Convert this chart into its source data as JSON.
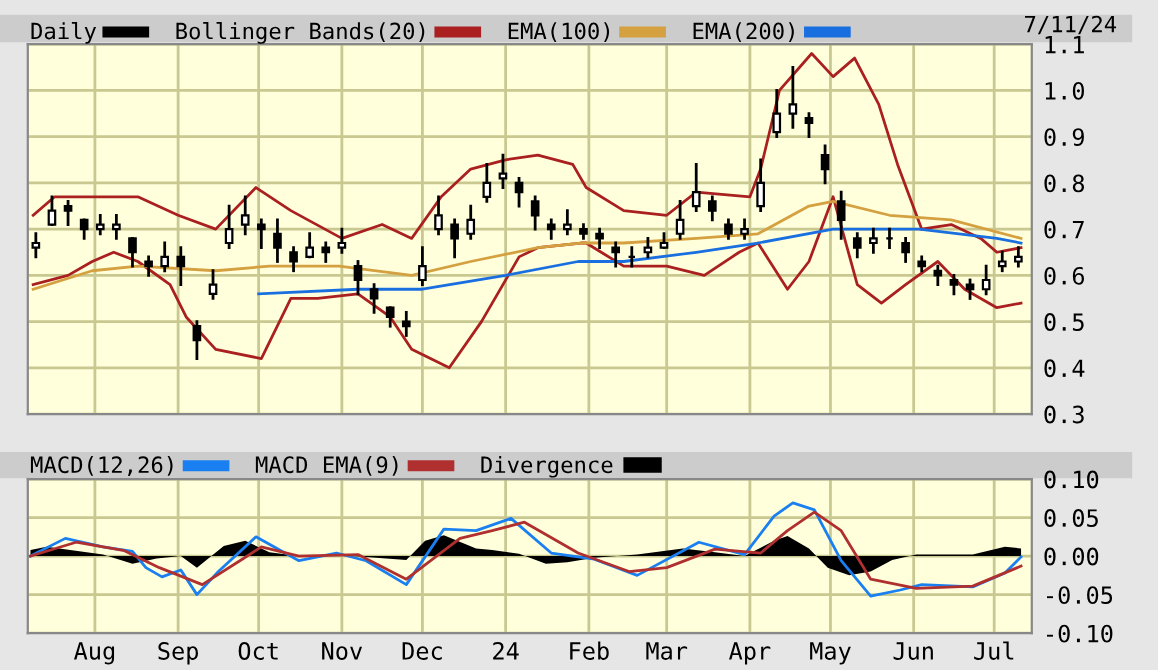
{
  "chart_data": [
    {
      "type": "candlestick",
      "legend": "top",
      "grid": true,
      "tick_labels": "y",
      "annotations": [
        "7/11/24"
      ],
      "xlim": [
        "2023-07-07",
        "2024-07-15"
      ],
      "xticks": [
        {
          "value": "2023-08-01",
          "label": null
        },
        {
          "value": "2023-09-01",
          "label": null
        },
        {
          "value": "2023-10-01",
          "label": null
        },
        {
          "value": "2023-11-01",
          "label": null
        },
        {
          "value": "2023-12-01",
          "label": null
        },
        {
          "value": "2024-01-01",
          "label": null
        },
        {
          "value": "2024-02-01",
          "label": null
        },
        {
          "value": "2024-03-01",
          "label": null
        },
        {
          "value": "2024-04-01",
          "label": null
        },
        {
          "value": "2024-05-01",
          "label": null
        },
        {
          "value": "2024-06-01",
          "label": null
        },
        {
          "value": "2024-07-01",
          "label": null
        }
      ],
      "ylim": [
        0.3,
        1.1
      ],
      "yticks": [
        0.3,
        0.4,
        0.5,
        0.6,
        0.7,
        0.8,
        0.9,
        {
          "value": 1.0,
          "label": "1.0"
        },
        1.1
      ],
      "series": [
        {
          "name": "Daily",
          "color": "#000000",
          "x": [
            "2023-07-10",
            "2023-07-16",
            "2023-07-22",
            "2023-07-28",
            "2023-08-03",
            "2023-08-09",
            "2023-08-15",
            "2023-08-21",
            "2023-08-27",
            "2023-09-02",
            "2023-09-08",
            "2023-09-14",
            "2023-09-20",
            "2023-09-26",
            "2023-10-02",
            "2023-10-08",
            "2023-10-14",
            "2023-10-20",
            "2023-10-26",
            "2023-11-01",
            "2023-11-07",
            "2023-11-13",
            "2023-11-19",
            "2023-11-25",
            "2023-12-01",
            "2023-12-07",
            "2023-12-13",
            "2023-12-19",
            "2023-12-25",
            "2023-12-31",
            "2024-01-06",
            "2024-01-12",
            "2024-01-18",
            "2024-01-24",
            "2024-01-30",
            "2024-02-05",
            "2024-02-11",
            "2024-02-17",
            "2024-02-23",
            "2024-02-29",
            "2024-03-06",
            "2024-03-12",
            "2024-03-18",
            "2024-03-24",
            "2024-03-30",
            "2024-04-05",
            "2024-04-11",
            "2024-04-17",
            "2024-04-23",
            "2024-04-29",
            "2024-05-05",
            "2024-05-11",
            "2024-05-17",
            "2024-05-23",
            "2024-05-29",
            "2024-06-04",
            "2024-06-10",
            "2024-06-16",
            "2024-06-22",
            "2024-06-28",
            "2024-07-04",
            "2024-07-10"
          ],
          "ohlc": [
            [
              0.66,
              0.69,
              0.64,
              0.67
            ],
            [
              0.71,
              0.77,
              0.71,
              0.74
            ],
            [
              0.75,
              0.76,
              0.71,
              0.74
            ],
            [
              0.72,
              0.72,
              0.68,
              0.7
            ],
            [
              0.7,
              0.73,
              0.69,
              0.71
            ],
            [
              0.7,
              0.73,
              0.68,
              0.71
            ],
            [
              0.68,
              0.68,
              0.62,
              0.65
            ],
            [
              0.63,
              0.64,
              0.6,
              0.62
            ],
            [
              0.62,
              0.67,
              0.61,
              0.64
            ],
            [
              0.64,
              0.66,
              0.58,
              0.62
            ],
            [
              0.49,
              0.5,
              0.42,
              0.46
            ],
            [
              0.56,
              0.61,
              0.55,
              0.58
            ],
            [
              0.67,
              0.75,
              0.66,
              0.7
            ],
            [
              0.71,
              0.77,
              0.69,
              0.73
            ],
            [
              0.71,
              0.72,
              0.66,
              0.7
            ],
            [
              0.69,
              0.72,
              0.63,
              0.66
            ],
            [
              0.65,
              0.66,
              0.61,
              0.63
            ],
            [
              0.64,
              0.69,
              0.64,
              0.66
            ],
            [
              0.66,
              0.67,
              0.63,
              0.65
            ],
            [
              0.66,
              0.7,
              0.65,
              0.67
            ],
            [
              0.62,
              0.63,
              0.56,
              0.59
            ],
            [
              0.57,
              0.58,
              0.52,
              0.55
            ],
            [
              0.53,
              0.53,
              0.49,
              0.51
            ],
            [
              0.5,
              0.52,
              0.47,
              0.49
            ],
            [
              0.59,
              0.66,
              0.58,
              0.62
            ],
            [
              0.7,
              0.77,
              0.69,
              0.73
            ],
            [
              0.71,
              0.72,
              0.64,
              0.68
            ],
            [
              0.69,
              0.75,
              0.68,
              0.72
            ],
            [
              0.77,
              0.84,
              0.76,
              0.8
            ],
            [
              0.81,
              0.86,
              0.79,
              0.82
            ],
            [
              0.8,
              0.81,
              0.75,
              0.78
            ],
            [
              0.76,
              0.77,
              0.7,
              0.73
            ],
            [
              0.71,
              0.72,
              0.68,
              0.7
            ],
            [
              0.7,
              0.74,
              0.69,
              0.71
            ],
            [
              0.7,
              0.71,
              0.68,
              0.69
            ],
            [
              0.69,
              0.7,
              0.66,
              0.68
            ],
            [
              0.66,
              0.67,
              0.62,
              0.65
            ],
            [
              0.64,
              0.66,
              0.62,
              0.64
            ],
            [
              0.65,
              0.68,
              0.64,
              0.66
            ],
            [
              0.66,
              0.69,
              0.66,
              0.67
            ],
            [
              0.69,
              0.76,
              0.68,
              0.72
            ],
            [
              0.75,
              0.84,
              0.74,
              0.78
            ],
            [
              0.76,
              0.77,
              0.72,
              0.74
            ],
            [
              0.71,
              0.72,
              0.68,
              0.69
            ],
            [
              0.69,
              0.72,
              0.68,
              0.7
            ],
            [
              0.75,
              0.85,
              0.74,
              0.8
            ],
            [
              0.91,
              1.0,
              0.9,
              0.95
            ],
            [
              0.95,
              1.05,
              0.92,
              0.97
            ],
            [
              0.94,
              0.95,
              0.9,
              0.93
            ],
            [
              0.86,
              0.88,
              0.8,
              0.83
            ],
            [
              0.76,
              0.78,
              0.68,
              0.72
            ],
            [
              0.68,
              0.69,
              0.64,
              0.66
            ],
            [
              0.67,
              0.7,
              0.65,
              0.68
            ],
            [
              0.68,
              0.7,
              0.66,
              0.68
            ],
            [
              0.67,
              0.68,
              0.63,
              0.65
            ],
            [
              0.63,
              0.64,
              0.61,
              0.62
            ],
            [
              0.61,
              0.62,
              0.58,
              0.6
            ],
            [
              0.59,
              0.6,
              0.56,
              0.58
            ],
            [
              0.58,
              0.59,
              0.55,
              0.57
            ],
            [
              0.57,
              0.62,
              0.56,
              0.59
            ],
            [
              0.62,
              0.65,
              0.61,
              0.63
            ],
            [
              0.63,
              0.66,
              0.62,
              0.64
            ]
          ]
        },
        {
          "name": "Bollinger Bands(20)",
          "type": "line",
          "color": "#aa2020",
          "x": [
            "2023-07-09",
            "2023-07-17",
            "2023-08-17",
            "2023-09-01",
            "2023-09-15",
            "2023-09-30",
            "2023-10-13",
            "2023-11-01",
            "2023-11-16",
            "2023-11-27",
            "2023-12-08",
            "2023-12-19",
            "2024-01-01",
            "2024-01-13",
            "2024-01-26",
            "2024-01-31",
            "2024-02-14",
            "2024-03-01",
            "2024-03-12",
            "2024-04-01",
            "2024-04-05",
            "2024-04-12",
            "2024-04-24",
            "2024-05-02",
            "2024-05-10",
            "2024-05-19",
            "2024-05-26",
            "2024-06-04",
            "2024-06-15",
            "2024-06-26",
            "2024-07-02",
            "2024-07-11"
          ],
          "values": [
            0.73,
            0.77,
            0.77,
            0.73,
            0.7,
            0.79,
            0.74,
            0.68,
            0.71,
            0.68,
            0.77,
            0.83,
            0.85,
            0.86,
            0.84,
            0.79,
            0.74,
            0.73,
            0.78,
            0.77,
            0.83,
            1.0,
            1.08,
            1.03,
            1.07,
            0.97,
            0.84,
            0.7,
            0.71,
            0.68,
            0.65,
            0.66
          ]
        },
        {
          "type": "line",
          "color": "#aa2020",
          "x": [
            "2023-07-09",
            "2023-07-22",
            "2023-07-31",
            "2023-08-08",
            "2023-08-17",
            "2023-08-29",
            "2023-09-04",
            "2023-09-15",
            "2023-10-02",
            "2023-10-13",
            "2023-10-23",
            "2023-11-07",
            "2023-11-19",
            "2023-11-27",
            "2023-12-11",
            "2023-12-23",
            "2024-01-06",
            "2024-01-13",
            "2024-01-29",
            "2024-01-31",
            "2024-02-14",
            "2024-03-01",
            "2024-03-15",
            "2024-03-28",
            "2024-04-04",
            "2024-04-15",
            "2024-04-23",
            "2024-05-02",
            "2024-05-11",
            "2024-05-20",
            "2024-05-29",
            "2024-06-10",
            "2024-06-20",
            "2024-07-02",
            "2024-07-11"
          ],
          "values": [
            0.58,
            0.6,
            0.63,
            0.65,
            0.63,
            0.58,
            0.51,
            0.44,
            0.42,
            0.55,
            0.55,
            0.56,
            0.51,
            0.44,
            0.4,
            0.5,
            0.64,
            0.66,
            0.67,
            0.67,
            0.62,
            0.62,
            0.6,
            0.65,
            0.67,
            0.57,
            0.63,
            0.77,
            0.58,
            0.54,
            0.58,
            0.63,
            0.57,
            0.53,
            0.54
          ]
        },
        {
          "name": "EMA(100)",
          "type": "line",
          "color": "#d4a040",
          "x": [
            "2023-07-09",
            "2023-07-31",
            "2023-08-17",
            "2023-09-15",
            "2023-10-05",
            "2023-10-31",
            "2023-11-27",
            "2023-12-19",
            "2024-01-13",
            "2024-01-29",
            "2024-02-14",
            "2024-03-12",
            "2024-04-04",
            "2024-04-23",
            "2024-05-02",
            "2024-05-23",
            "2024-06-15",
            "2024-07-11"
          ],
          "values": [
            0.57,
            0.61,
            0.62,
            0.61,
            0.62,
            0.62,
            0.6,
            0.63,
            0.66,
            0.67,
            0.67,
            0.68,
            0.69,
            0.75,
            0.76,
            0.73,
            0.72,
            0.68
          ]
        },
        {
          "name": "EMA(200)",
          "type": "line",
          "color": "#1a6fe0",
          "x": [
            "2023-10-01",
            "2023-11-07",
            "2023-12-01",
            "2024-01-01",
            "2024-01-28",
            "2024-02-14",
            "2024-03-12",
            "2024-04-04",
            "2024-05-02",
            "2024-06-03",
            "2024-07-02",
            "2024-07-11"
          ],
          "values": [
            0.56,
            0.57,
            0.57,
            0.6,
            0.63,
            0.63,
            0.65,
            0.67,
            0.7,
            0.7,
            0.68,
            0.67
          ]
        }
      ]
    },
    {
      "type": "line",
      "legend": "top",
      "grid": true,
      "xlim": [
        "2023-07-07",
        "2024-07-15"
      ],
      "xticks": [
        {
          "value": "2023-08-01",
          "label": "Aug"
        },
        {
          "value": "2023-09-01",
          "label": "Sep"
        },
        {
          "value": "2023-10-01",
          "label": "Oct"
        },
        {
          "value": "2023-11-01",
          "label": "Nov"
        },
        {
          "value": "2023-12-01",
          "label": "Dec"
        },
        {
          "value": "2024-01-01",
          "label": "24"
        },
        {
          "value": "2024-02-01",
          "label": "Feb"
        },
        {
          "value": "2024-03-01",
          "label": "Mar"
        },
        {
          "value": "2024-04-01",
          "label": "Apr"
        },
        {
          "value": "2024-05-01",
          "label": "May"
        },
        {
          "value": "2024-06-01",
          "label": "Jun"
        },
        {
          "value": "2024-07-01",
          "label": "Jul"
        }
      ],
      "ylim": [
        -0.1,
        0.1
      ],
      "yticks": [
        {
          "value": -0.1,
          "label": "-0.10"
        },
        {
          "value": -0.05,
          "label": "-0.05"
        },
        {
          "value": 0,
          "label": "0.00"
        },
        {
          "value": 0.05,
          "label": "0.05"
        },
        {
          "value": 0.1,
          "label": "0.10"
        }
      ],
      "series": [
        {
          "name": "MACD(12,26)",
          "color": "#1a7ff0",
          "x": [
            "2023-07-08",
            "2023-07-21",
            "2023-08-04",
            "2023-08-15",
            "2023-08-20",
            "2023-08-26",
            "2023-09-02",
            "2023-09-08",
            "2023-09-16",
            "2023-09-30",
            "2023-10-16",
            "2023-10-30",
            "2023-11-10",
            "2023-11-25",
            "2023-12-09",
            "2023-12-21",
            "2024-01-03",
            "2024-01-18",
            "2024-02-03",
            "2024-02-19",
            "2024-03-13",
            "2024-03-30",
            "2024-04-10",
            "2024-04-17",
            "2024-04-25",
            "2024-05-05",
            "2024-05-16",
            "2024-05-27",
            "2024-06-04",
            "2024-06-23",
            "2024-07-05",
            "2024-07-11"
          ],
          "values": [
            0,
            0.023,
            0.012,
            0.006,
            -0.015,
            -0.027,
            -0.018,
            -0.05,
            -0.02,
            0.025,
            -0.006,
            0.004,
            -0.006,
            -0.037,
            0.035,
            0.033,
            0.049,
            0.004,
            -0.004,
            -0.025,
            0.018,
            0.002,
            0.052,
            0.069,
            0.06,
            -0.006,
            -0.052,
            -0.044,
            -0.037,
            -0.04,
            -0.022,
            -0.001
          ]
        },
        {
          "name": "MACD EMA(9)",
          "color": "#b03030",
          "x": [
            "2023-07-08",
            "2023-07-25",
            "2023-08-12",
            "2023-08-25",
            "2023-09-10",
            "2023-09-24",
            "2023-10-02",
            "2023-10-16",
            "2023-11-07",
            "2023-11-25",
            "2023-12-15",
            "2023-12-27",
            "2024-01-08",
            "2024-01-28",
            "2024-02-16",
            "2024-03-01",
            "2024-03-19",
            "2024-04-05",
            "2024-04-15",
            "2024-04-25",
            "2024-05-05",
            "2024-05-16",
            "2024-06-02",
            "2024-06-23",
            "2024-07-11"
          ],
          "values": [
            0,
            0.018,
            0.007,
            -0.015,
            -0.037,
            -0.006,
            0.012,
            0,
            0.002,
            -0.03,
            0.023,
            0.033,
            0.044,
            0.004,
            -0.02,
            -0.015,
            0.009,
            0.004,
            0.033,
            0.057,
            0.033,
            -0.03,
            -0.042,
            -0.039,
            -0.013
          ]
        },
        {
          "name": "Divergence",
          "type": "area",
          "color": "#000000",
          "x": [
            "2023-07-08",
            "2023-07-14",
            "2023-08-04",
            "2023-08-15",
            "2023-08-24",
            "2023-09-02",
            "2023-09-08",
            "2023-09-18",
            "2023-09-26",
            "2023-10-05",
            "2023-10-16",
            "2023-11-05",
            "2023-11-25",
            "2023-12-02",
            "2023-12-09",
            "2023-12-21",
            "2023-12-27",
            "2024-01-06",
            "2024-01-16",
            "2024-01-24",
            "2024-02-03",
            "2024-02-19",
            "2024-03-07",
            "2024-03-19",
            "2024-03-30",
            "2024-04-10",
            "2024-04-15",
            "2024-04-23",
            "2024-04-30",
            "2024-05-08",
            "2024-05-16",
            "2024-05-24",
            "2024-06-02",
            "2024-06-23",
            "2024-07-05",
            "2024-07-11"
          ],
          "values": [
            0.008,
            0.012,
            0.002,
            -0.01,
            -0.003,
            0,
            -0.015,
            0.013,
            0.02,
            0.005,
            0,
            0,
            -0.005,
            0.02,
            0.027,
            0.01,
            0.008,
            0.003,
            -0.01,
            -0.008,
            -0.002,
            0.002,
            0.01,
            0.005,
            0,
            0.02,
            0.026,
            0.01,
            -0.015,
            -0.025,
            -0.02,
            -0.005,
            0.002,
            0.002,
            0.012,
            0.01
          ]
        }
      ]
    }
  ]
}
